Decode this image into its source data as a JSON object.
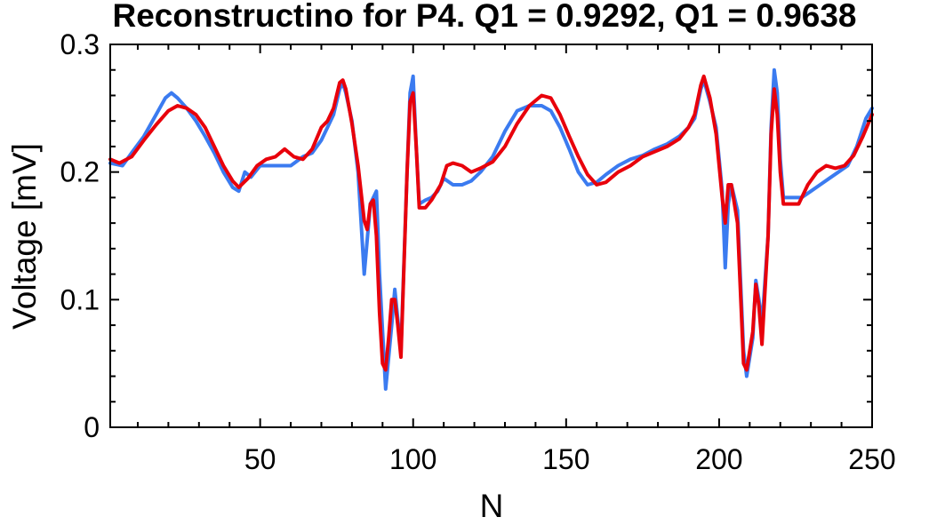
{
  "chart_data": {
    "type": "line",
    "title": "Reconstructino for P4. Q1 = 0.9292, Q1 = 0.9638",
    "xlabel": "N",
    "ylabel": "Voltage [mV]",
    "xlim": [
      1,
      250
    ],
    "ylim": [
      0,
      0.3
    ],
    "xticks": [
      50,
      100,
      150,
      200,
      250
    ],
    "xtick_labels": [
      "50",
      "100",
      "150",
      "200",
      "250"
    ],
    "yticks": [
      0,
      0.1,
      0.2,
      0.3
    ],
    "ytick_labels": [
      "0",
      "0.1",
      "0.2",
      "0.3"
    ],
    "grid": false,
    "series": [
      {
        "color": "#3b7bf0",
        "points": [
          [
            1,
            0.207
          ],
          [
            5,
            0.205
          ],
          [
            8,
            0.215
          ],
          [
            12,
            0.228
          ],
          [
            16,
            0.245
          ],
          [
            19,
            0.258
          ],
          [
            21,
            0.262
          ],
          [
            23,
            0.258
          ],
          [
            26,
            0.25
          ],
          [
            29,
            0.24
          ],
          [
            32,
            0.228
          ],
          [
            35,
            0.215
          ],
          [
            38,
            0.2
          ],
          [
            41,
            0.188
          ],
          [
            43,
            0.185
          ],
          [
            45,
            0.2
          ],
          [
            47,
            0.196
          ],
          [
            50,
            0.205
          ],
          [
            55,
            0.205
          ],
          [
            60,
            0.205
          ],
          [
            64,
            0.212
          ],
          [
            67,
            0.215
          ],
          [
            70,
            0.225
          ],
          [
            72,
            0.235
          ],
          [
            74,
            0.245
          ],
          [
            76,
            0.265
          ],
          [
            77,
            0.27
          ],
          [
            78,
            0.262
          ],
          [
            80,
            0.24
          ],
          [
            82,
            0.2
          ],
          [
            84,
            0.12
          ],
          [
            86,
            0.175
          ],
          [
            88,
            0.185
          ],
          [
            89,
            0.12
          ],
          [
            91,
            0.03
          ],
          [
            93,
            0.08
          ],
          [
            94,
            0.108
          ],
          [
            96,
            0.06
          ],
          [
            98,
            0.2
          ],
          [
            99,
            0.262
          ],
          [
            100,
            0.275
          ],
          [
            101,
            0.22
          ],
          [
            102,
            0.175
          ],
          [
            104,
            0.178
          ],
          [
            106,
            0.18
          ],
          [
            108,
            0.185
          ],
          [
            110,
            0.195
          ],
          [
            113,
            0.19
          ],
          [
            116,
            0.19
          ],
          [
            119,
            0.193
          ],
          [
            122,
            0.2
          ],
          [
            126,
            0.212
          ],
          [
            130,
            0.232
          ],
          [
            134,
            0.248
          ],
          [
            138,
            0.252
          ],
          [
            142,
            0.252
          ],
          [
            145,
            0.248
          ],
          [
            148,
            0.235
          ],
          [
            151,
            0.218
          ],
          [
            154,
            0.2
          ],
          [
            157,
            0.19
          ],
          [
            160,
            0.192
          ],
          [
            163,
            0.198
          ],
          [
            167,
            0.205
          ],
          [
            171,
            0.21
          ],
          [
            175,
            0.213
          ],
          [
            179,
            0.218
          ],
          [
            183,
            0.222
          ],
          [
            187,
            0.228
          ],
          [
            190,
            0.235
          ],
          [
            192,
            0.242
          ],
          [
            194,
            0.265
          ],
          [
            195,
            0.272
          ],
          [
            197,
            0.255
          ],
          [
            199,
            0.235
          ],
          [
            201,
            0.185
          ],
          [
            202,
            0.125
          ],
          [
            203,
            0.175
          ],
          [
            204,
            0.19
          ],
          [
            206,
            0.17
          ],
          [
            208,
            0.06
          ],
          [
            209,
            0.04
          ],
          [
            211,
            0.07
          ],
          [
            212,
            0.115
          ],
          [
            213,
            0.1
          ],
          [
            214,
            0.08
          ],
          [
            216,
            0.15
          ],
          [
            217,
            0.235
          ],
          [
            218,
            0.28
          ],
          [
            219,
            0.262
          ],
          [
            220,
            0.21
          ],
          [
            221,
            0.18
          ],
          [
            224,
            0.18
          ],
          [
            227,
            0.18
          ],
          [
            230,
            0.185
          ],
          [
            233,
            0.19
          ],
          [
            236,
            0.195
          ],
          [
            239,
            0.2
          ],
          [
            242,
            0.205
          ],
          [
            245,
            0.22
          ],
          [
            248,
            0.242
          ],
          [
            250,
            0.25
          ]
        ]
      },
      {
        "color": "#e8000b",
        "points": [
          [
            1,
            0.21
          ],
          [
            4,
            0.207
          ],
          [
            8,
            0.212
          ],
          [
            12,
            0.225
          ],
          [
            16,
            0.237
          ],
          [
            20,
            0.248
          ],
          [
            23,
            0.252
          ],
          [
            26,
            0.25
          ],
          [
            29,
            0.245
          ],
          [
            32,
            0.235
          ],
          [
            35,
            0.22
          ],
          [
            38,
            0.205
          ],
          [
            41,
            0.193
          ],
          [
            43,
            0.188
          ],
          [
            46,
            0.195
          ],
          [
            49,
            0.205
          ],
          [
            52,
            0.21
          ],
          [
            55,
            0.212
          ],
          [
            58,
            0.218
          ],
          [
            61,
            0.212
          ],
          [
            64,
            0.21
          ],
          [
            67,
            0.218
          ],
          [
            70,
            0.235
          ],
          [
            72,
            0.24
          ],
          [
            74,
            0.25
          ],
          [
            76,
            0.27
          ],
          [
            77,
            0.272
          ],
          [
            78,
            0.265
          ],
          [
            80,
            0.238
          ],
          [
            82,
            0.205
          ],
          [
            84,
            0.162
          ],
          [
            85,
            0.155
          ],
          [
            86,
            0.175
          ],
          [
            87,
            0.178
          ],
          [
            88,
            0.15
          ],
          [
            89,
            0.09
          ],
          [
            90,
            0.05
          ],
          [
            91,
            0.045
          ],
          [
            92,
            0.07
          ],
          [
            93,
            0.1
          ],
          [
            94,
            0.1
          ],
          [
            95,
            0.08
          ],
          [
            96,
            0.055
          ],
          [
            98,
            0.2
          ],
          [
            99,
            0.255
          ],
          [
            100,
            0.262
          ],
          [
            101,
            0.22
          ],
          [
            102,
            0.172
          ],
          [
            104,
            0.172
          ],
          [
            106,
            0.178
          ],
          [
            109,
            0.19
          ],
          [
            111,
            0.205
          ],
          [
            113,
            0.207
          ],
          [
            116,
            0.205
          ],
          [
            119,
            0.2
          ],
          [
            122,
            0.203
          ],
          [
            126,
            0.208
          ],
          [
            130,
            0.22
          ],
          [
            134,
            0.238
          ],
          [
            138,
            0.252
          ],
          [
            142,
            0.26
          ],
          [
            145,
            0.258
          ],
          [
            148,
            0.245
          ],
          [
            151,
            0.228
          ],
          [
            154,
            0.212
          ],
          [
            157,
            0.198
          ],
          [
            160,
            0.19
          ],
          [
            163,
            0.192
          ],
          [
            167,
            0.2
          ],
          [
            171,
            0.205
          ],
          [
            175,
            0.212
          ],
          [
            179,
            0.216
          ],
          [
            183,
            0.22
          ],
          [
            187,
            0.226
          ],
          [
            190,
            0.235
          ],
          [
            192,
            0.245
          ],
          [
            194,
            0.268
          ],
          [
            195,
            0.275
          ],
          [
            197,
            0.258
          ],
          [
            199,
            0.23
          ],
          [
            201,
            0.18
          ],
          [
            202,
            0.16
          ],
          [
            203,
            0.19
          ],
          [
            204,
            0.19
          ],
          [
            206,
            0.16
          ],
          [
            208,
            0.05
          ],
          [
            209,
            0.045
          ],
          [
            211,
            0.075
          ],
          [
            212,
            0.112
          ],
          [
            213,
            0.095
          ],
          [
            214,
            0.065
          ],
          [
            216,
            0.15
          ],
          [
            217,
            0.23
          ],
          [
            218,
            0.265
          ],
          [
            219,
            0.245
          ],
          [
            220,
            0.2
          ],
          [
            221,
            0.175
          ],
          [
            223,
            0.175
          ],
          [
            226,
            0.175
          ],
          [
            229,
            0.19
          ],
          [
            232,
            0.2
          ],
          [
            235,
            0.205
          ],
          [
            238,
            0.203
          ],
          [
            241,
            0.205
          ],
          [
            244,
            0.213
          ],
          [
            247,
            0.228
          ],
          [
            250,
            0.245
          ]
        ]
      }
    ]
  }
}
